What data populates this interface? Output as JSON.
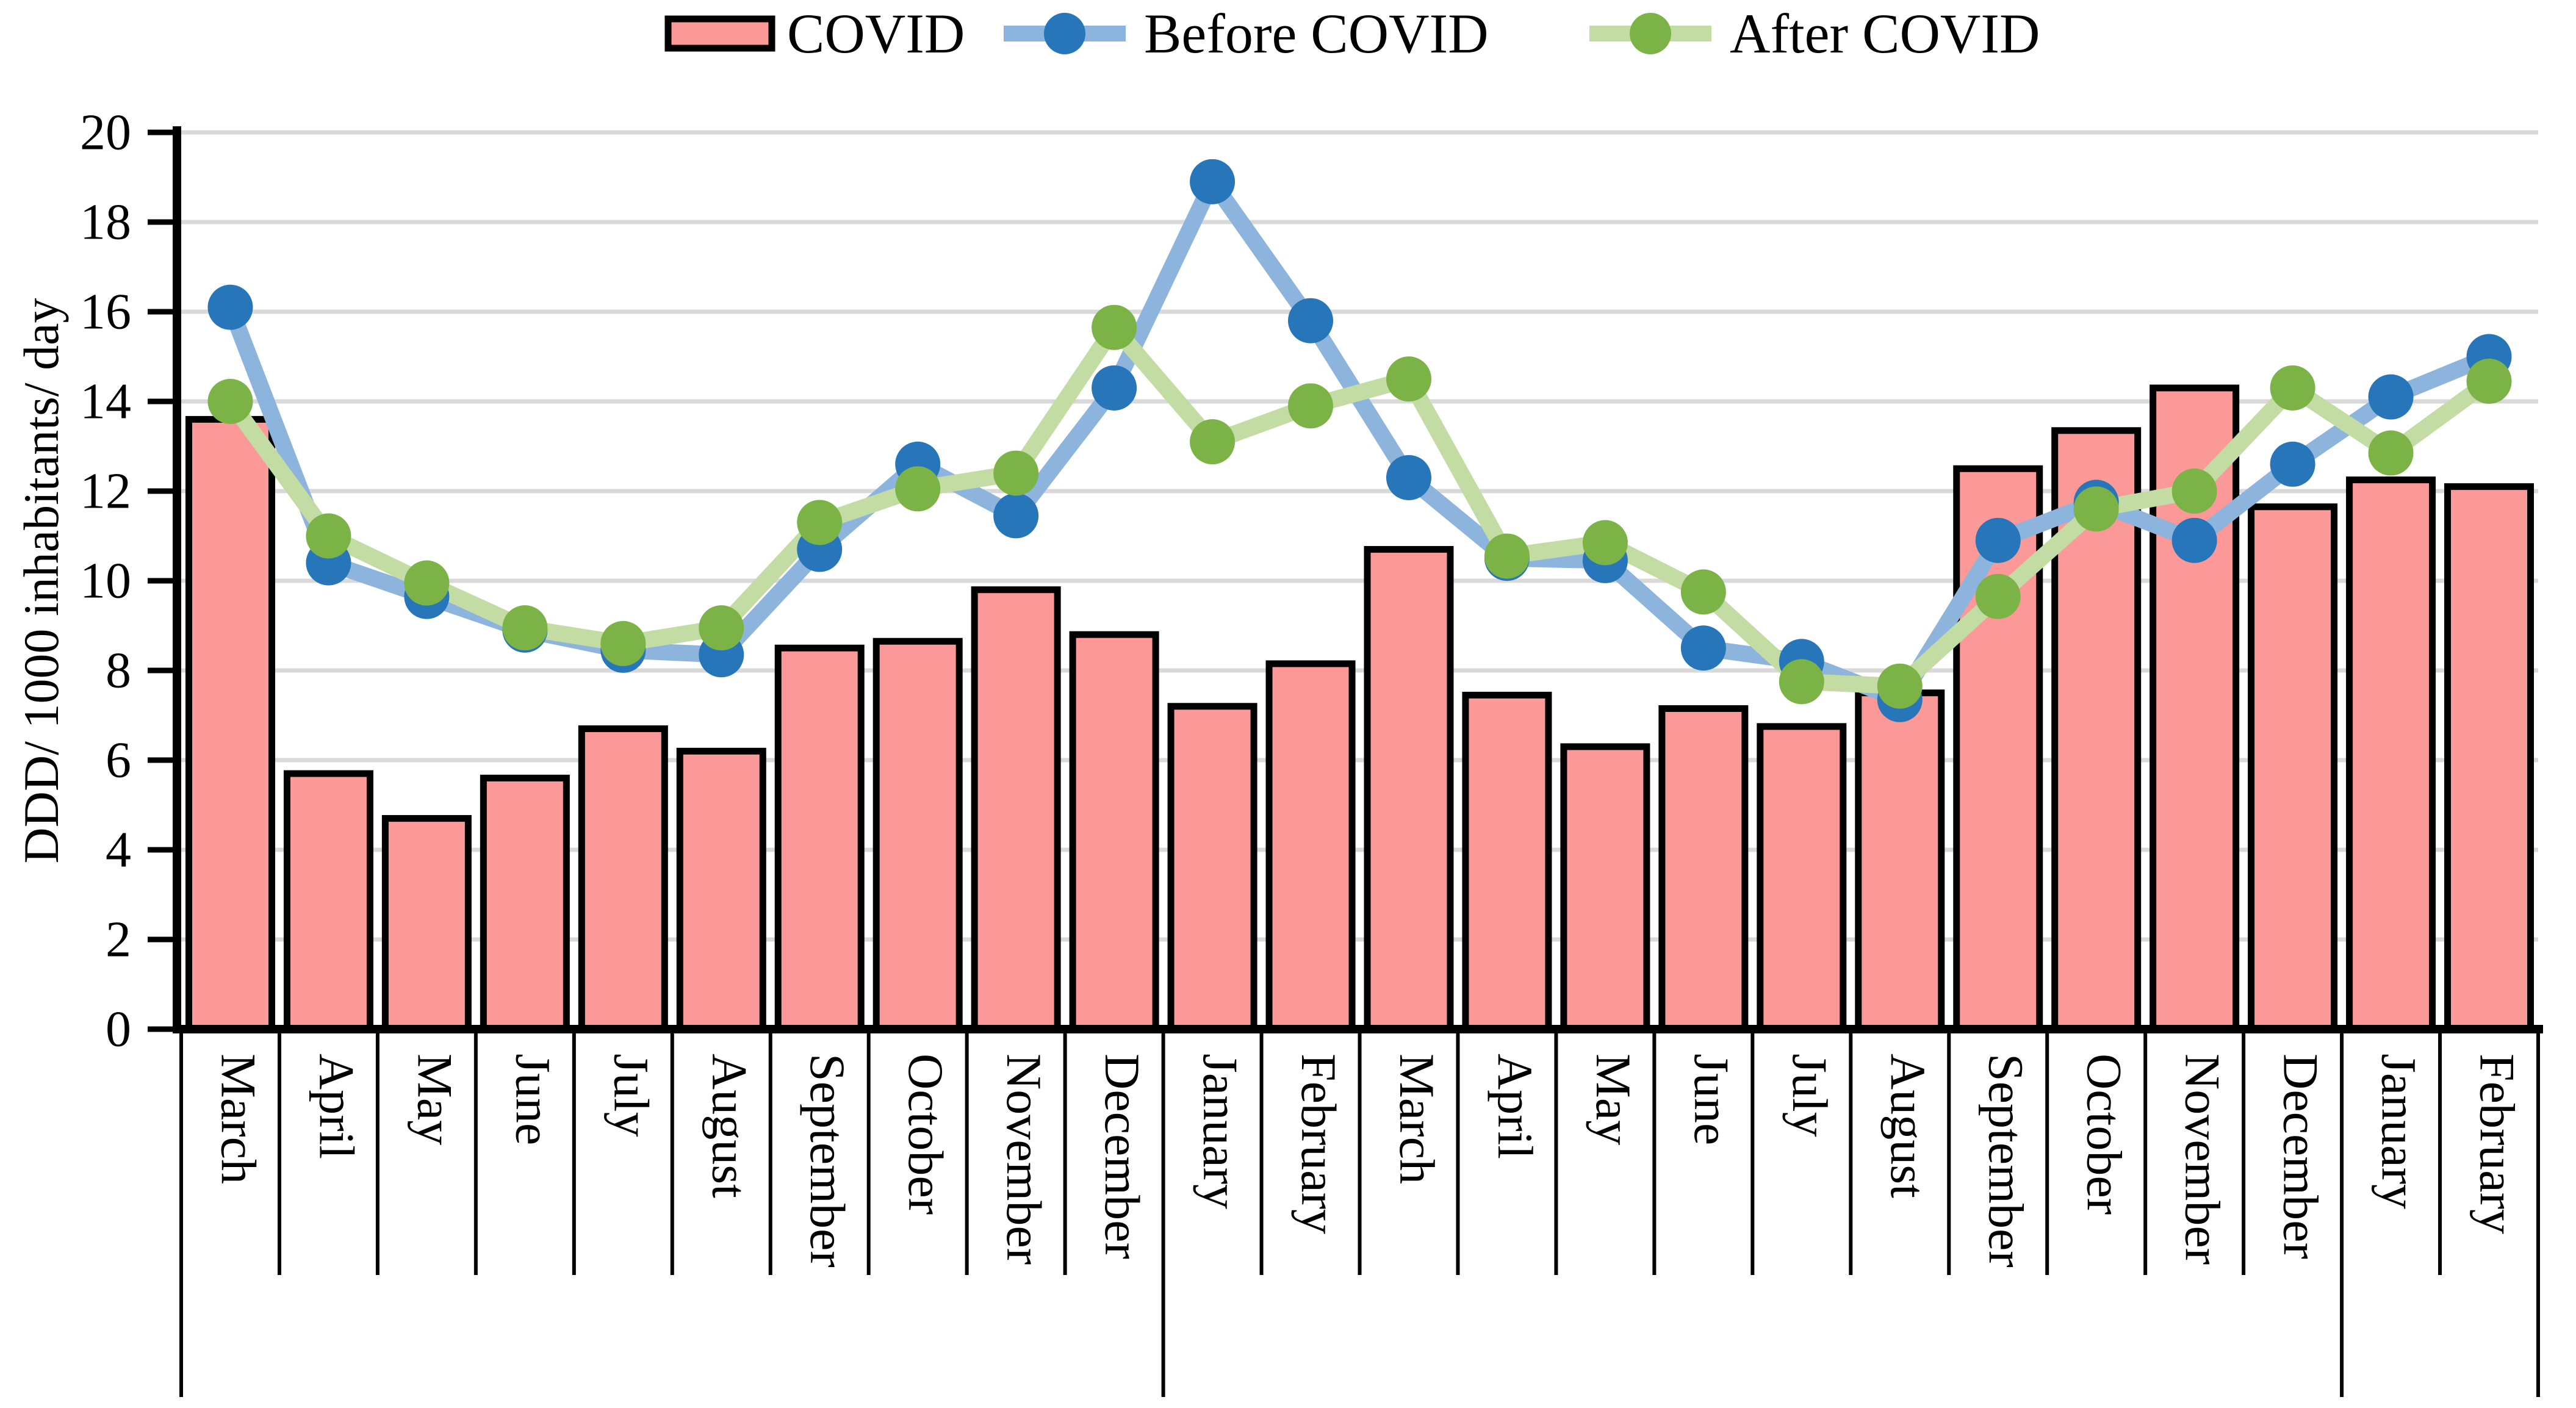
{
  "chart_data": {
    "type": "bar+line combo",
    "title": "",
    "xlabel": "",
    "ylabel": "DDD/ 1000 inhabitants/ day",
    "ylim": [
      0,
      20
    ],
    "ytick_step": 2,
    "grid": "horizontal gridlines on",
    "legend_position": "top center",
    "categories": [
      "March",
      "April",
      "May",
      "June",
      "July",
      "August",
      "September",
      "October",
      "November",
      "December",
      "January",
      "February",
      "March",
      "April",
      "May",
      "June",
      "July",
      "August",
      "September",
      "October",
      "November",
      "December",
      "January",
      "February"
    ],
    "category_group_separators_after_index": [
      9,
      21
    ],
    "series": [
      {
        "name": "COVID",
        "type": "bar",
        "fill_color": "#FB9998",
        "border_color": "#000000",
        "values": [
          13.6,
          5.7,
          4.7,
          5.6,
          6.7,
          6.2,
          8.5,
          8.65,
          9.8,
          8.8,
          7.2,
          8.15,
          10.7,
          7.45,
          6.3,
          7.15,
          6.75,
          7.5,
          12.5,
          13.35,
          14.3,
          11.65,
          12.25,
          12.1
        ]
      },
      {
        "name": "Before COVID",
        "type": "line",
        "line_color": "#8DB4DC",
        "marker_color": "#2776B9",
        "values": [
          16.1,
          10.4,
          9.65,
          8.9,
          8.45,
          8.35,
          10.7,
          12.6,
          11.45,
          14.3,
          18.9,
          15.8,
          12.3,
          10.5,
          10.45,
          8.5,
          8.2,
          7.35,
          10.9,
          11.75,
          10.9,
          12.6,
          14.1,
          15.0
        ]
      },
      {
        "name": "After COVID",
        "type": "line",
        "line_color": "#C3DCA3",
        "marker_color": "#7CB347",
        "values": [
          14.0,
          11.0,
          9.95,
          8.95,
          8.6,
          8.95,
          11.3,
          12.05,
          12.4,
          15.65,
          13.1,
          13.9,
          14.5,
          10.55,
          10.85,
          9.75,
          7.75,
          7.65,
          9.65,
          11.6,
          12.0,
          14.3,
          12.85,
          14.45
        ]
      }
    ],
    "yticks": [
      0,
      2,
      4,
      6,
      8,
      10,
      12,
      14,
      16,
      18,
      20
    ],
    "gridline_color": "#D9D9D9",
    "axis_color": "#000000"
  }
}
